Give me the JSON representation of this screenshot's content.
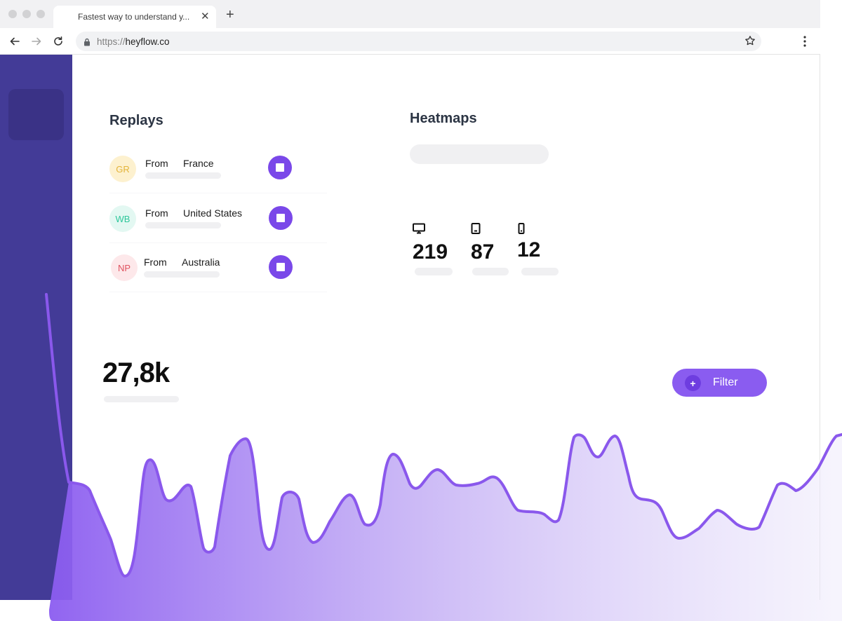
{
  "browser": {
    "tab_title": "Fastest way to understand y...",
    "url_scheme": "https://",
    "url_host": "heyflow.co"
  },
  "replays": {
    "title": "Replays",
    "rows": [
      {
        "initials": "GR",
        "from_label": "From",
        "country": "France",
        "avatar_bg": "#fdf1cf",
        "avatar_fg": "#e3b43a"
      },
      {
        "initials": "WB",
        "from_label": "From",
        "country": "United States",
        "avatar_bg": "#e3f8f2",
        "avatar_fg": "#2ec79b"
      },
      {
        "initials": "NP",
        "from_label": "From",
        "country": "Australia",
        "avatar_bg": "#fde8ea",
        "avatar_fg": "#e0525f"
      }
    ]
  },
  "heatmaps": {
    "title": "Heatmaps",
    "devices": [
      {
        "icon": "desktop-icon",
        "count": "219"
      },
      {
        "icon": "tablet-icon",
        "count": "87"
      },
      {
        "icon": "mobile-icon",
        "count": "12"
      }
    ]
  },
  "summary": {
    "total": "27,8k",
    "filter_label": "Filter"
  },
  "colors": {
    "accent": "#7a48e9",
    "sidebar": "#433b97"
  }
}
